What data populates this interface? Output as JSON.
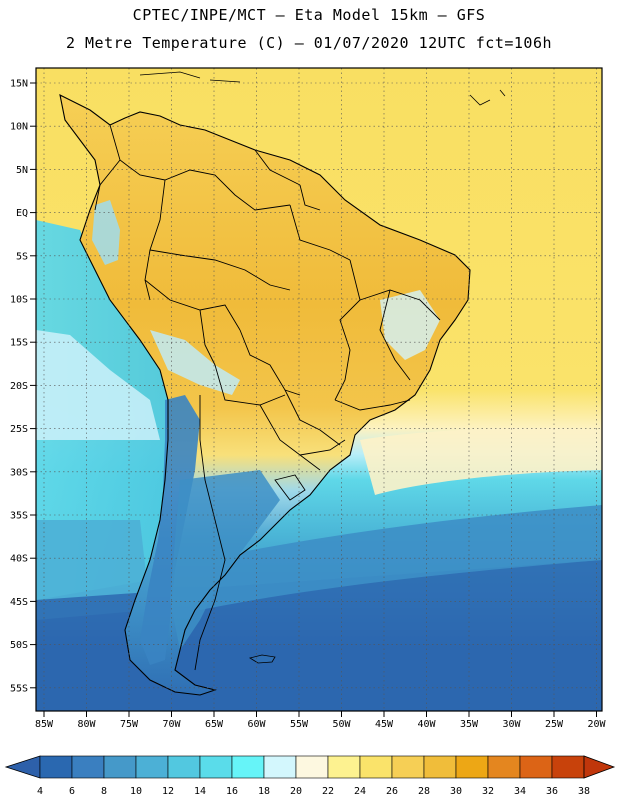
{
  "header": {
    "line1": "CPTEC/INPE/MCT –  Eta Model 15km – GFS",
    "line2": "2 Metre Temperature (C) – 01/07/2020 12UTC fct=106h"
  },
  "lat_labels": [
    "15N",
    "10N",
    "5N",
    "EQ",
    "5S",
    "10S",
    "15S",
    "20S",
    "25S",
    "30S",
    "35S",
    "40S",
    "45S",
    "50S",
    "55S"
  ],
  "lon_labels": [
    "85W",
    "80W",
    "75W",
    "70W",
    "65W",
    "60W",
    "55W",
    "50W",
    "45W",
    "40W",
    "35W",
    "30W",
    "25W",
    "20W"
  ],
  "colorbar": {
    "ticks": [
      "4",
      "6",
      "8",
      "10",
      "12",
      "14",
      "16",
      "18",
      "20",
      "22",
      "24",
      "26",
      "28",
      "30",
      "32",
      "34",
      "36",
      "38"
    ],
    "colors": [
      "#2a68b0",
      "#3a7fc0",
      "#4599c9",
      "#4cb0d6",
      "#52c8e0",
      "#5adcea",
      "#66f4f8",
      "#d3f7fd",
      "#fdf8e0",
      "#fdf290",
      "#fae36a",
      "#f6cf55",
      "#f0bd3a",
      "#eda715",
      "#e4861f",
      "#dc6416",
      "#c8420b"
    ],
    "low_color": "#2d60aa",
    "high_color": "#c0360b"
  },
  "colors": {
    "ocean_cold": "#2a60a8",
    "ocean_cool": "#3d8fc6",
    "ocean_mid": "#4cb8d8",
    "ocean_warm": "#5fd8e8",
    "ocean_pale": "#d3f3fb",
    "ocean_tropical": "#fae36a",
    "land_hot": "#f0bb3a",
    "land_warm": "#f6cf55",
    "andes_cold": "#3a84c2",
    "border": "#000000"
  }
}
